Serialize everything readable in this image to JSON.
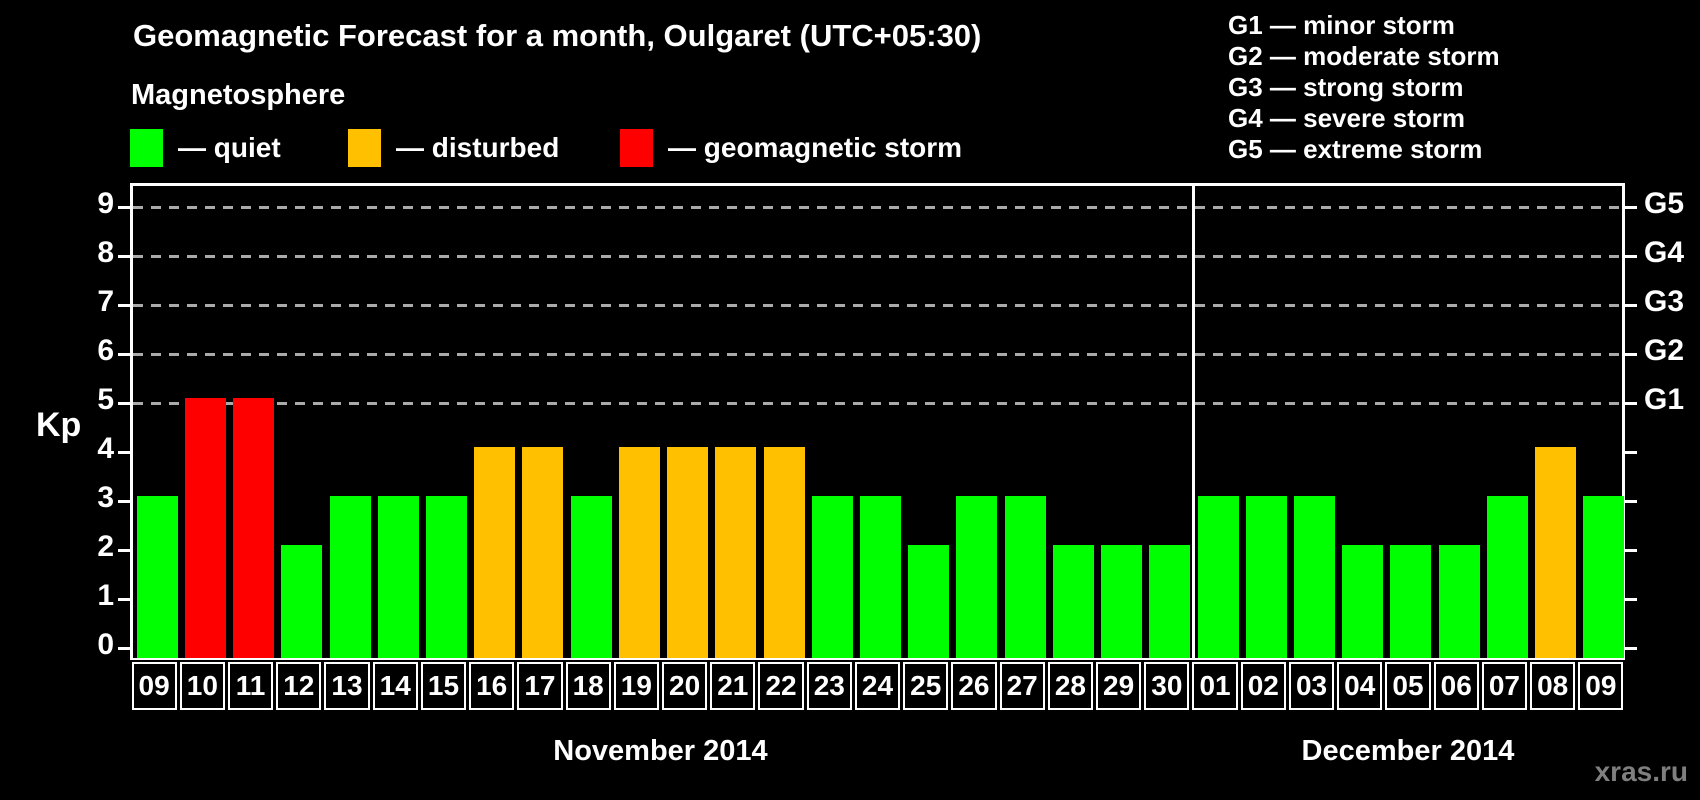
{
  "header": {
    "title": "Geomagnetic Forecast for a month, Oulgaret (UTC+05:30)",
    "subtitle": "Magnetosphere"
  },
  "legend": {
    "items": [
      {
        "name": "quiet",
        "label": "— quiet",
        "color": "#00FF00"
      },
      {
        "name": "disturbed",
        "label": "— disturbed",
        "color": "#FFC000"
      },
      {
        "name": "storm",
        "label": "— geomagnetic storm",
        "color": "#FF0000"
      }
    ]
  },
  "g_legend": {
    "items": [
      "G1 — minor storm",
      "G2 — moderate storm",
      "G3 — strong storm",
      "G4 — severe storm",
      "G5 — extreme storm"
    ]
  },
  "chart_data": {
    "type": "bar",
    "title": "Geomagnetic Forecast for a month, Oulgaret (UTC+05:30)",
    "xlabel": "",
    "ylabel": "Kp",
    "ylim": [
      0,
      9.5
    ],
    "yticks": [
      0,
      1,
      2,
      3,
      4,
      5,
      6,
      7,
      8,
      9
    ],
    "gridlines_at_kp": [
      5,
      6,
      7,
      8,
      9
    ],
    "grid": "dashed horizontal lines at storm levels G1–G5",
    "legend_position": "top-left",
    "right_axis": [
      {
        "kp": 5,
        "label": "G1"
      },
      {
        "kp": 6,
        "label": "G2"
      },
      {
        "kp": 7,
        "label": "G3"
      },
      {
        "kp": 8,
        "label": "G4"
      },
      {
        "kp": 9,
        "label": "G5"
      }
    ],
    "status_colors": {
      "quiet": "#00FF00",
      "disturbed": "#FFC000",
      "storm": "#FF0000"
    },
    "months": [
      {
        "label": "November 2014",
        "days": [
          {
            "day": "09",
            "kp": 3,
            "status": "quiet"
          },
          {
            "day": "10",
            "kp": 5,
            "status": "storm"
          },
          {
            "day": "11",
            "kp": 5,
            "status": "storm"
          },
          {
            "day": "12",
            "kp": 2,
            "status": "quiet"
          },
          {
            "day": "13",
            "kp": 3,
            "status": "quiet"
          },
          {
            "day": "14",
            "kp": 3,
            "status": "quiet"
          },
          {
            "day": "15",
            "kp": 3,
            "status": "quiet"
          },
          {
            "day": "16",
            "kp": 4,
            "status": "disturbed"
          },
          {
            "day": "17",
            "kp": 4,
            "status": "disturbed"
          },
          {
            "day": "18",
            "kp": 3,
            "status": "quiet"
          },
          {
            "day": "19",
            "kp": 4,
            "status": "disturbed"
          },
          {
            "day": "20",
            "kp": 4,
            "status": "disturbed"
          },
          {
            "day": "21",
            "kp": 4,
            "status": "disturbed"
          },
          {
            "day": "22",
            "kp": 4,
            "status": "disturbed"
          },
          {
            "day": "23",
            "kp": 3,
            "status": "quiet"
          },
          {
            "day": "24",
            "kp": 3,
            "status": "quiet"
          },
          {
            "day": "25",
            "kp": 2,
            "status": "quiet"
          },
          {
            "day": "26",
            "kp": 3,
            "status": "quiet"
          },
          {
            "day": "27",
            "kp": 3,
            "status": "quiet"
          },
          {
            "day": "28",
            "kp": 2,
            "status": "quiet"
          },
          {
            "day": "29",
            "kp": 2,
            "status": "quiet"
          },
          {
            "day": "30",
            "kp": 2,
            "status": "quiet"
          }
        ]
      },
      {
        "label": "December 2014",
        "days": [
          {
            "day": "01",
            "kp": 3,
            "status": "quiet"
          },
          {
            "day": "02",
            "kp": 3,
            "status": "quiet"
          },
          {
            "day": "03",
            "kp": 3,
            "status": "quiet"
          },
          {
            "day": "04",
            "kp": 2,
            "status": "quiet"
          },
          {
            "day": "05",
            "kp": 2,
            "status": "quiet"
          },
          {
            "day": "06",
            "kp": 2,
            "status": "quiet"
          },
          {
            "day": "07",
            "kp": 3,
            "status": "quiet"
          },
          {
            "day": "08",
            "kp": 4,
            "status": "disturbed"
          },
          {
            "day": "09",
            "kp": 3,
            "status": "quiet"
          }
        ]
      }
    ]
  },
  "watermark": "xras.ru"
}
